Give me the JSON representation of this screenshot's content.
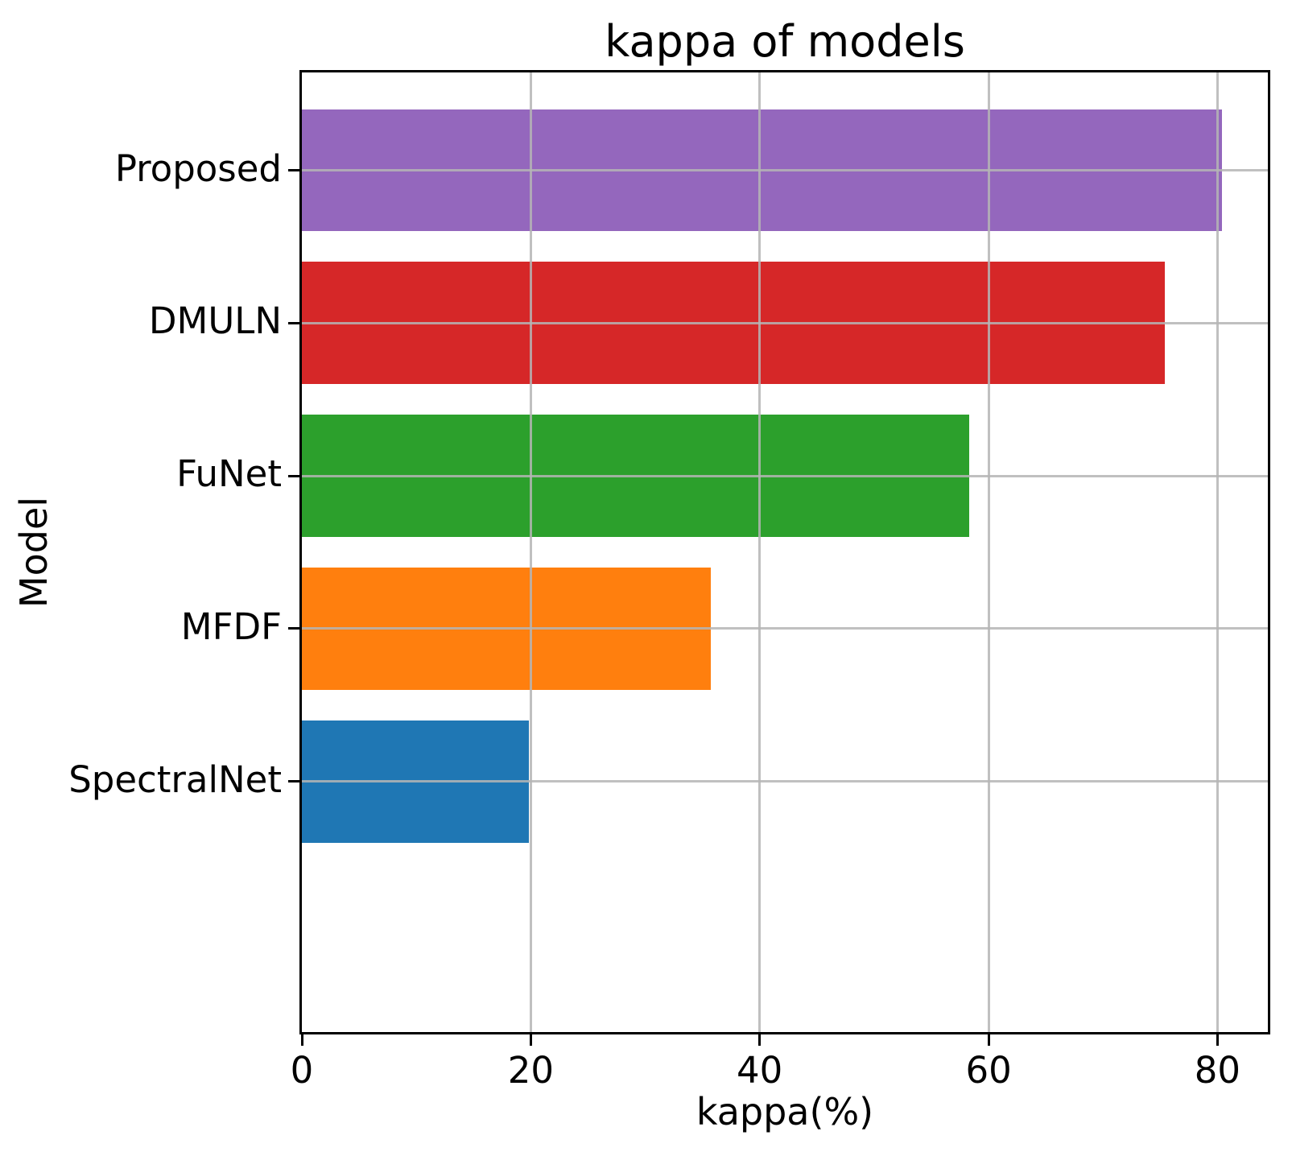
{
  "chart_data": {
    "type": "bar",
    "orientation": "horizontal",
    "title": "kappa of models",
    "xlabel": "kappa(%)",
    "ylabel": "Model",
    "categories": [
      "Proposed",
      "DMULN",
      "FuNet",
      "MFDF",
      "SpectralNet"
    ],
    "categories_order": "top_to_bottom",
    "values": [
      80.4,
      75.4,
      58.3,
      35.7,
      19.8
    ],
    "bar_colors": [
      "#9467bd",
      "#d62728",
      "#2ca02c",
      "#ff7f0e",
      "#1f77b4"
    ],
    "x_ticks": [
      0,
      20,
      40,
      60,
      80
    ],
    "x_tick_labels": [
      "0",
      "20",
      "40",
      "60",
      "80"
    ],
    "xlim": [
      0,
      84.4
    ],
    "grid": true,
    "grid_color": "#b5b5b5",
    "grid_over_bars": true,
    "legend": "none",
    "spine_color": "#000000",
    "background_color": "#ffffff"
  }
}
